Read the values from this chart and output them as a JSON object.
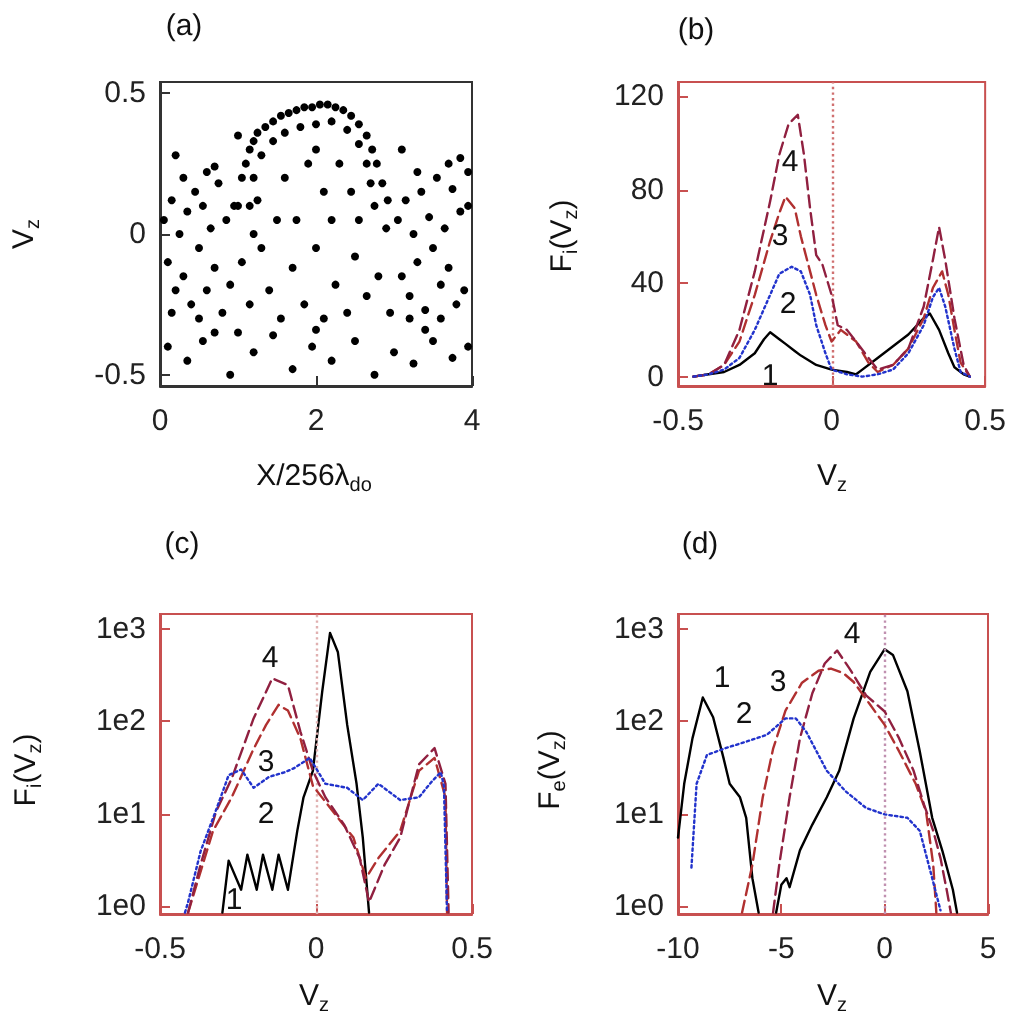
{
  "chart_data": [
    {
      "type": "scatter",
      "title": "(a)",
      "xlabel": "X/256λ$_{do}$",
      "ylabel": "V$_{z}$",
      "color": "#000000",
      "marker": "circle",
      "xlim": [
        0,
        4
      ],
      "ylim": [
        -0.54,
        0.54
      ],
      "xticks": [
        0,
        2,
        4
      ],
      "yticks": [
        -0.5,
        0,
        0.5
      ],
      "x": [
        0.05,
        0.1,
        0.15,
        0.2,
        0.25,
        0.3,
        0.35,
        0.4,
        0.45,
        0.5,
        0.55,
        0.6,
        0.65,
        0.7,
        0.75,
        0.8,
        0.85,
        0.9,
        0.95,
        0.3,
        0.6,
        0.15,
        0.5,
        0.7,
        3.05,
        3.1,
        3.15,
        3.2,
        3.25,
        3.3,
        3.35,
        3.4,
        3.45,
        3.5,
        3.55,
        3.6,
        3.65,
        3.7,
        3.75,
        3.8,
        3.85,
        3.9,
        3.95,
        3.3,
        3.7,
        3.2,
        3.6,
        3.95,
        1.05,
        1.15,
        1.3,
        1.4,
        1.55,
        1.7,
        1.85,
        2,
        2.1,
        2.25,
        2.4,
        2.5,
        2.65,
        2.8,
        2.95,
        1.2,
        2.9,
        1,
        1.05,
        1.1,
        1.15,
        1.2,
        1.25,
        1.35,
        1.45,
        1.55,
        1.65,
        1.75,
        1.85,
        1.95,
        2.05,
        2.15,
        2.25,
        2.35,
        2.45,
        2.55,
        2.65,
        2.72,
        2.78,
        2.85,
        2.92,
        1.2,
        1.3,
        1.45,
        1.6,
        1.8,
        2,
        2.2,
        2.4,
        2.55,
        2.65,
        2.7,
        2.75,
        1.15,
        1.25,
        1.6,
        1.9,
        2.1,
        2.3,
        2.45,
        1.75,
        2.2,
        2.55,
        1.5,
        2,
        0.1,
        0.35,
        0.55,
        0.9,
        1.2,
        1.45,
        1.7,
        1.95,
        2.2,
        2.5,
        2.75,
        3,
        3.25,
        3.5,
        3.75,
        3.95,
        0.7,
        2,
        3.4,
        1,
        0.2,
        3.85,
        1,
        3.1
      ],
      "values": [
        0.05,
        -0.1,
        0.12,
        -0.2,
        0,
        -0.15,
        0.08,
        -0.25,
        0.15,
        -0.05,
        0.1,
        -0.2,
        0.02,
        -0.12,
        0.18,
        -0.28,
        0.05,
        -0.18,
        0.1,
        0.2,
        0.22,
        -0.28,
        -0.3,
        0.24,
        0.05,
        -0.15,
        0.12,
        -0.22,
        0,
        -0.1,
        0.15,
        -0.27,
        0.06,
        -0.05,
        0.2,
        -0.18,
        0.02,
        -0.12,
        0.16,
        -0.25,
        0.08,
        -0.2,
        0.1,
        0.22,
        0.25,
        -0.3,
        -0.3,
        0.22,
        -0.1,
        -0.25,
        -0.05,
        -0.2,
        -0.3,
        -0.12,
        -0.25,
        -0.05,
        -0.3,
        -0.18,
        -0.28,
        -0.08,
        -0.22,
        -0.15,
        -0.28,
        0,
        0.02,
        0.1,
        0.2,
        0.25,
        0.3,
        0.33,
        0.36,
        0.38,
        0.4,
        0.42,
        0.43,
        0.44,
        0.45,
        0.45,
        0.46,
        0.46,
        0.45,
        0.44,
        0.42,
        0.39,
        0.35,
        0.3,
        0.25,
        0.18,
        0.12,
        0.2,
        0.28,
        0.33,
        0.36,
        0.38,
        0.39,
        0.4,
        0.37,
        0.32,
        0.25,
        0.18,
        0.1,
        0.1,
        0.12,
        0.2,
        0.25,
        0.15,
        0.25,
        0.15,
        0.05,
        0.05,
        0.05,
        0.05,
        0.3,
        -0.4,
        -0.45,
        -0.38,
        -0.5,
        -0.42,
        -0.36,
        -0.48,
        -0.4,
        -0.45,
        -0.38,
        -0.5,
        -0.42,
        -0.46,
        -0.38,
        -0.44,
        -0.4,
        -0.35,
        -0.34,
        -0.34,
        -0.35,
        0.28,
        0.27,
        0.35,
        0.3
      ]
    },
    {
      "type": "line",
      "title": "(b)",
      "xlabel": "V$_{z}$",
      "ylabel": "F$_{i}$(V$_{z}$)",
      "marker": "none",
      "xlim": [
        -0.5,
        0.5
      ],
      "ylim": [
        -4,
        126
      ],
      "xticks": [
        -0.5,
        0,
        0.5
      ],
      "yticks": [
        0,
        40,
        80,
        120
      ],
      "ref_lines": [
        {
          "axis": "x",
          "value": 0,
          "color": "#d07070",
          "line_style": "dotted"
        }
      ],
      "series": [
        {
          "name": "1",
          "color": "#000000",
          "line_style": "solid",
          "x": [
            -0.45,
            -0.4,
            -0.35,
            -0.3,
            -0.25,
            -0.22,
            -0.2,
            -0.17,
            -0.15,
            -0.12,
            -0.1,
            -0.05,
            0,
            0.05,
            0.08,
            0.1,
            0.15,
            0.2,
            0.25,
            0.3,
            0.32,
            0.35,
            0.38,
            0.4,
            0.43,
            0.45
          ],
          "values": [
            0,
            1,
            2,
            5,
            10,
            16,
            19,
            16,
            14,
            11,
            9,
            5,
            3,
            2,
            1,
            3,
            8,
            13,
            18,
            25,
            27,
            20,
            10,
            4,
            1,
            0
          ]
        },
        {
          "name": "2",
          "color": "#2233cc",
          "line_style": "dotted",
          "x": [
            -0.45,
            -0.4,
            -0.35,
            -0.3,
            -0.25,
            -0.2,
            -0.17,
            -0.13,
            -0.1,
            -0.07,
            -0.05,
            -0.02,
            0,
            0.05,
            0.1,
            0.15,
            0.2,
            0.25,
            0.3,
            0.33,
            0.35,
            0.37,
            0.4,
            0.42,
            0.45
          ],
          "values": [
            0,
            1,
            3,
            8,
            20,
            35,
            44,
            47,
            45,
            35,
            22,
            10,
            3,
            1,
            0,
            1,
            3,
            10,
            22,
            34,
            38,
            30,
            12,
            2,
            0
          ]
        },
        {
          "name": "3",
          "color": "#b03030",
          "line_style": "dashed",
          "x": [
            -0.45,
            -0.4,
            -0.35,
            -0.3,
            -0.25,
            -0.2,
            -0.17,
            -0.15,
            -0.12,
            -0.1,
            -0.07,
            -0.05,
            -0.02,
            0,
            0.03,
            0.05,
            0.08,
            0.12,
            0.15,
            0.2,
            0.25,
            0.3,
            0.33,
            0.36,
            0.38,
            0.4,
            0.42,
            0.45
          ],
          "values": [
            0,
            1,
            5,
            15,
            35,
            58,
            70,
            77,
            72,
            60,
            45,
            35,
            22,
            15,
            20,
            18,
            15,
            6,
            2,
            5,
            12,
            25,
            38,
            45,
            35,
            20,
            6,
            0
          ]
        },
        {
          "name": "4",
          "color": "#902040",
          "line_style": "dashed",
          "x": [
            -0.45,
            -0.4,
            -0.35,
            -0.3,
            -0.25,
            -0.2,
            -0.17,
            -0.14,
            -0.11,
            -0.09,
            -0.07,
            -0.05,
            -0.03,
            0,
            0.02,
            0.05,
            0.08,
            0.12,
            0.15,
            0.2,
            0.25,
            0.3,
            0.33,
            0.35,
            0.37,
            0.4,
            0.43,
            0.45
          ],
          "values": [
            0,
            1,
            5,
            20,
            45,
            75,
            95,
            108,
            112,
            95,
            72,
            52,
            48,
            35,
            22,
            20,
            15,
            8,
            3,
            5,
            12,
            30,
            50,
            64,
            50,
            25,
            5,
            0
          ]
        }
      ]
    },
    {
      "type": "line",
      "title": "(c)",
      "xlabel": "V$_{z}$",
      "ylabel": "F$_{i}$(V$_{z}$)",
      "marker": "none",
      "log": "y",
      "xlim": [
        -0.5,
        0.5
      ],
      "ylim": [
        0.82,
        1440
      ],
      "xticks": [
        -0.5,
        0,
        0.5
      ],
      "yticks": [
        {
          "value": 1,
          "label": "1e0"
        },
        {
          "value": 10,
          "label": "1e1"
        },
        {
          "value": 100,
          "label": "1e2"
        },
        {
          "value": 1000,
          "label": "1e3"
        }
      ],
      "ref_lines": [
        {
          "axis": "x",
          "value": 0,
          "color": "#e0b0b0",
          "line_style": "dotted"
        }
      ],
      "series": [
        {
          "name": "1",
          "color": "#000000",
          "line_style": "solid",
          "x": [
            -0.3,
            -0.28,
            -0.24,
            -0.22,
            -0.19,
            -0.17,
            -0.14,
            -0.12,
            -0.09,
            -0.06,
            -0.04,
            -0.01,
            0.02,
            0.045,
            0.07,
            0.1,
            0.13,
            0.15,
            0.17
          ],
          "values": [
            0.85,
            3.1,
            1.5,
            3.6,
            1.5,
            3.6,
            1.5,
            3.6,
            1.5,
            6.5,
            15,
            29,
            210,
            900,
            560,
            91,
            21,
            5.5,
            0.85
          ]
        },
        {
          "name": "2",
          "color": "#2233cc",
          "line_style": "dotted",
          "x": [
            -0.42,
            -0.41,
            -0.37,
            -0.32,
            -0.28,
            -0.24,
            -0.2,
            -0.15,
            -0.1,
            -0.07,
            -0.02,
            0.03,
            0.1,
            0.15,
            0.2,
            0.27,
            0.33,
            0.37,
            0.4,
            0.41,
            0.42
          ],
          "values": [
            0.85,
            1.1,
            3.9,
            11,
            26,
            30,
            19,
            25,
            28,
            31,
            40,
            21,
            19,
            14,
            21,
            14,
            15,
            22,
            28,
            20,
            0.85
          ]
        },
        {
          "name": "3",
          "color": "#b03030",
          "line_style": "dashed",
          "x": [
            -0.41,
            -0.33,
            -0.27,
            -0.2,
            -0.16,
            -0.12,
            -0.09,
            -0.05,
            -0.01,
            0.05,
            0.12,
            0.16,
            0.2,
            0.27,
            0.33,
            0.38,
            0.415,
            0.42
          ],
          "values": [
            0.85,
            6.5,
            15,
            50,
            91,
            150,
            130,
            65,
            20,
            11,
            5.5,
            2,
            3.3,
            6.5,
            29,
            40,
            15,
            0.85
          ]
        },
        {
          "name": "4",
          "color": "#902040",
          "line_style": "dashed",
          "x": [
            -0.41,
            -0.37,
            -0.32,
            -0.27,
            -0.2,
            -0.14,
            -0.09,
            -0.05,
            -0.01,
            0.03,
            0.09,
            0.14,
            0.17,
            0.22,
            0.27,
            0.33,
            0.38,
            0.415,
            0.425
          ],
          "values": [
            0.85,
            2.8,
            10.6,
            24,
            107,
            290,
            245,
            77,
            29,
            15,
            7.6,
            3.3,
            1.1,
            2.8,
            5.5,
            34,
            51,
            21,
            0.85
          ]
        }
      ]
    },
    {
      "type": "line",
      "title": "(d)",
      "xlabel": "V$_{z}$",
      "ylabel": "F$_{e}$(V$_{z}$)",
      "marker": "none",
      "log": "y",
      "xlim": [
        -10,
        5
      ],
      "ylim": [
        0.82,
        1440
      ],
      "xticks": [
        -10,
        -5,
        0,
        5
      ],
      "yticks": [
        {
          "value": 1,
          "label": "1e0"
        },
        {
          "value": 10,
          "label": "1e1"
        },
        {
          "value": 100,
          "label": "1e2"
        },
        {
          "value": 1000,
          "label": "1e3"
        }
      ],
      "ref_lines": [
        {
          "axis": "x",
          "value": 0,
          "color": "#c090b0",
          "line_style": "dotted"
        }
      ],
      "series": [
        {
          "name": "1",
          "color": "#000000",
          "line_style": "solid",
          "x": [
            -10,
            -9.7,
            -9.3,
            -8.8,
            -8.3,
            -7.8,
            -7.5,
            -7,
            -6.7,
            -6.4,
            -6.1,
            -5.7,
            -5.25,
            -5,
            -4.75,
            -4.6,
            -4.1,
            -3.5,
            -2.8,
            -2.2,
            -1.5,
            -0.7,
            0,
            0.4,
            1.1,
            1.7,
            2.3,
            2.8,
            3.3,
            3.5
          ],
          "values": [
            5.5,
            21,
            65,
            180,
            110,
            40,
            21,
            15,
            9,
            2,
            0.85,
            null,
            0.85,
            1.7,
            2,
            1.6,
            4,
            7.6,
            15,
            29,
            107,
            340,
            600,
            520,
            210,
            47,
            9,
            3.9,
            1.5,
            0.85
          ]
        },
        {
          "name": "2",
          "color": "#2233cc",
          "line_style": "dotted",
          "x": [
            -9.35,
            -9.1,
            -8.6,
            -7.7,
            -6.7,
            -5.7,
            -4.8,
            -4.3,
            -3.8,
            -2.8,
            -1.9,
            -0.9,
            0,
            1.1,
            1.7,
            2.3,
            2.7
          ],
          "values": [
            2.6,
            21,
            43,
            51,
            60,
            71,
            107,
            107,
            77,
            29,
            17.5,
            11.5,
            9.8,
            9,
            6.5,
            2,
            0.9
          ]
        },
        {
          "name": "3",
          "color": "#b03030",
          "line_style": "dashed",
          "x": [
            -6.9,
            -6.4,
            -5.9,
            -5.4,
            -4.8,
            -4,
            -3.2,
            -2.6,
            -2,
            -1.5,
            -0.7,
            0,
            0.7,
            1.5,
            2,
            2.35,
            2.5
          ],
          "values": [
            0.85,
            2.8,
            15,
            50,
            130,
            260,
            350,
            370,
            330,
            265,
            150,
            91,
            47,
            21,
            10.6,
            2.8,
            0.85
          ]
        },
        {
          "name": "4",
          "color": "#902040",
          "line_style": "dashed",
          "x": [
            -5.4,
            -5.1,
            -4.6,
            -4.1,
            -3.5,
            -2.9,
            -2.3,
            -1.7,
            -0.9,
            0,
            0.7,
            1.4,
            1.9,
            2.35,
            2.7,
            3,
            3.2
          ],
          "values": [
            0.85,
            2.8,
            15,
            65,
            200,
            420,
            580,
            370,
            190,
            127,
            65,
            29,
            12.6,
            6.5,
            3.3,
            1.5,
            0.85
          ]
        }
      ]
    }
  ]
}
